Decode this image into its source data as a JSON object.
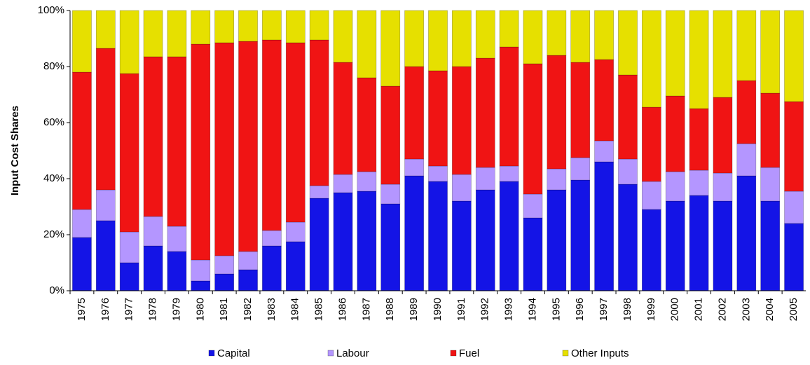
{
  "chart_data": {
    "type": "stacked_bar",
    "y_label": "Input Cost Shares",
    "categories": [
      "1975",
      "1976",
      "1977",
      "1978",
      "1979",
      "1980",
      "1981",
      "1982",
      "1983",
      "1984",
      "1985",
      "1986",
      "1987",
      "1988",
      "1989",
      "1990",
      "1991",
      "1992",
      "1993",
      "1994",
      "1995",
      "1996",
      "1997",
      "1998",
      "1999",
      "2000",
      "2001",
      "2002",
      "2003",
      "2004",
      "2005"
    ],
    "series": [
      {
        "name": "Capital",
        "color": "#1414e6",
        "values": [
          19,
          25,
          10,
          16,
          14,
          3.5,
          6,
          7.5,
          16,
          17.5,
          33,
          35,
          35.5,
          31,
          41,
          39,
          32,
          36,
          39,
          26,
          36,
          39.5,
          46,
          38,
          29,
          32,
          34,
          32,
          41,
          32,
          24
        ]
      },
      {
        "name": "Labour",
        "color": "#b496ff",
        "values": [
          10,
          11,
          11,
          10.5,
          9,
          7.5,
          6.5,
          6.5,
          5.5,
          7,
          4.5,
          6.5,
          7,
          7,
          6,
          5.5,
          9.5,
          8,
          5.5,
          8.5,
          7.5,
          8,
          7.5,
          9,
          10,
          10.5,
          9,
          10,
          11.5,
          12,
          11.5
        ]
      },
      {
        "name": "Fuel",
        "color": "#f01414",
        "values": [
          49,
          50.5,
          56.5,
          57,
          60.5,
          77,
          76,
          75,
          68,
          64,
          52,
          40,
          33.5,
          35,
          33,
          34,
          38.5,
          39,
          42.5,
          46.5,
          40.5,
          34,
          29,
          30,
          26.5,
          27,
          22,
          27,
          22.5,
          26.5,
          32
        ]
      },
      {
        "name": "Other Inputs",
        "color": "#e6e000",
        "values": [
          22,
          13.5,
          22.5,
          16.5,
          16.5,
          12,
          11.5,
          11,
          10.5,
          11.5,
          10.5,
          18.5,
          24,
          27,
          20,
          21.5,
          20,
          17,
          13,
          19,
          16,
          18.5,
          17.5,
          23,
          34.5,
          30.5,
          35,
          31,
          25,
          29.5,
          32.5
        ]
      }
    ],
    "ylim": [
      0,
      100
    ],
    "yticks": [
      {
        "value": 0,
        "label": "0%"
      },
      {
        "value": 20,
        "label": "20%"
      },
      {
        "value": 40,
        "label": "40%"
      },
      {
        "value": 60,
        "label": "60%"
      },
      {
        "value": 80,
        "label": "80%"
      },
      {
        "value": 100,
        "label": "100%"
      }
    ],
    "legend": "bottom"
  }
}
